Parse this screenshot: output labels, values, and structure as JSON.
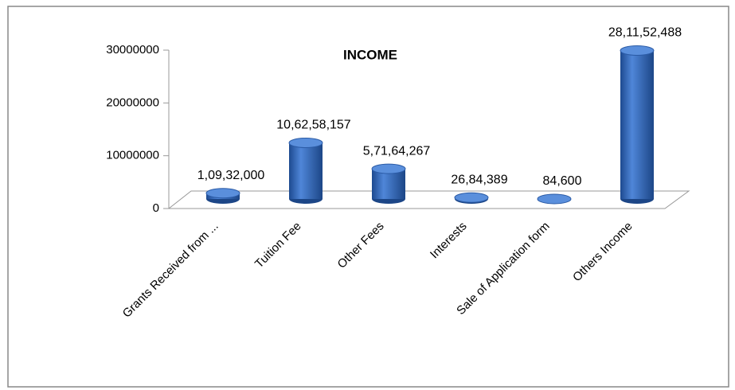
{
  "chart_data": {
    "type": "bar3d",
    "title": "INCOME",
    "categories": [
      "Grants Received from ...",
      "Tuition Fee",
      "Other Fees",
      "Interests",
      "Sale of Application form",
      "Others Income"
    ],
    "values": [
      1093200,
      10625815.7,
      5716426.7,
      268438.9,
      8460,
      28115248.8
    ],
    "value_labels": [
      "1,09,32,000",
      "10,62,58,157",
      "5,71,64,267",
      "26,84,389",
      "84,600",
      "28,11,52,488"
    ],
    "color": "#2f62b5",
    "ylim": [
      0,
      30000000
    ],
    "yticks": [
      0,
      10000000,
      20000000,
      30000000
    ]
  }
}
